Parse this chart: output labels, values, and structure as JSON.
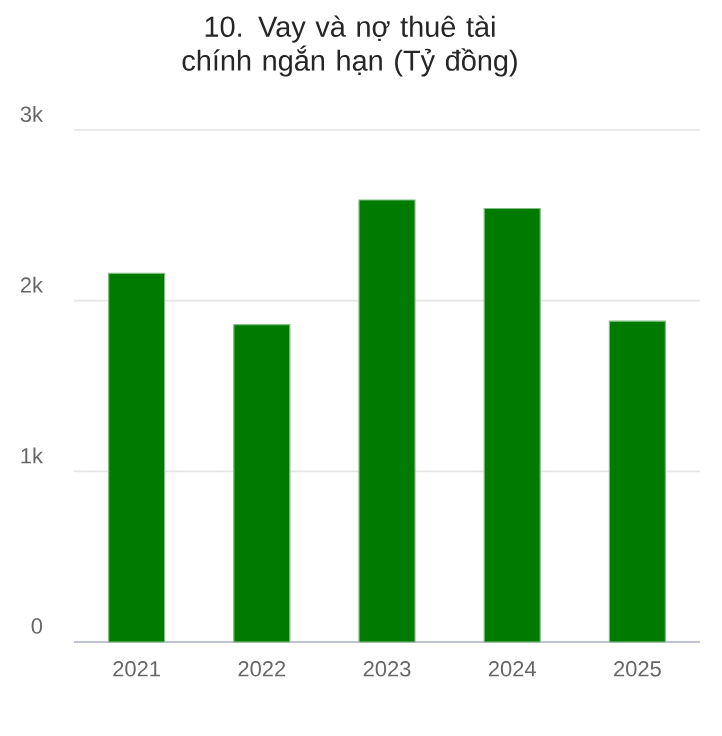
{
  "chart_data": {
    "type": "bar",
    "title": "10. Vay và nợ thuê tài chính ngắn hạn (Tỷ đồng)",
    "categories": [
      "2021",
      "2022",
      "2023",
      "2024",
      "2025"
    ],
    "values": [
      2160,
      1860,
      2590,
      2540,
      1880
    ],
    "color": "#007b00",
    "ylim": [
      0,
      3000
    ],
    "yticks": [
      0,
      {
        "value": 1000,
        "label": "1k"
      },
      {
        "value": 2000,
        "label": "2k"
      },
      {
        "value": 3000,
        "label": "3k"
      }
    ],
    "grid": "y"
  }
}
